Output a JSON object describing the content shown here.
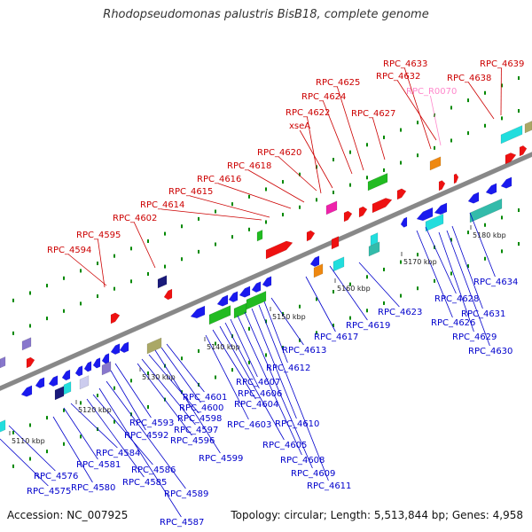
{
  "title": "Rhodopseudomonas palustris BisB18, complete genome",
  "accession": "Accession: NC_007925",
  "topology": "Topology: circular; Length: 5,513,844 bp; Genes: 4,958",
  "colors": {
    "backbone": "#888888",
    "upper_label": "#cc0000",
    "lower_label": "#0000cc",
    "rna_label": "#ff88cc",
    "tick": "#008800",
    "kbp": "#222222"
  },
  "kbp_ticks": [
    "5110 kbp",
    "5120 kbp",
    "5130 kbp",
    "5140 kbp",
    "5150 kbp",
    "5160 kbp",
    "5170 kbp",
    "5180 kbp"
  ],
  "upper_labels": [
    "RPC_4594",
    "RPC_4595",
    "RPC_4602",
    "RPC_4614",
    "RPC_4615",
    "RPC_4616",
    "RPC_4618",
    "RPC_4620",
    "xseA",
    "RPC_4622",
    "RPC_4624",
    "RPC_4625",
    "RPC_4627",
    "RPC_4632",
    "RPC_4633",
    "RPC_R0070",
    "RPC_4638",
    "RPC_4639"
  ],
  "lower_labels": [
    "RPC_4575",
    "RPC_4576",
    "RPC_4580",
    "RPC_4581",
    "RPC_4584",
    "RPC_4585",
    "RPC_4586",
    "RPC_4587",
    "RPC_4589",
    "RPC_4592",
    "RPC_4593",
    "RPC_4596",
    "RPC_4597",
    "RPC_4598",
    "RPC_4599",
    "RPC_4600",
    "RPC_4601",
    "RPC_4603",
    "RPC_4604",
    "RPC_4605",
    "RPC_4606",
    "RPC_4607",
    "RPC_4608",
    "RPC_4609",
    "RPC_4610",
    "RPC_4611",
    "RPC_4612",
    "RPC_4613",
    "RPC_4617",
    "RPC_4619",
    "RPC_4623",
    "RPC_4626",
    "RPC_4628",
    "RPC_4629",
    "RPC_4630",
    "RPC_4631",
    "RPC_4634"
  ]
}
